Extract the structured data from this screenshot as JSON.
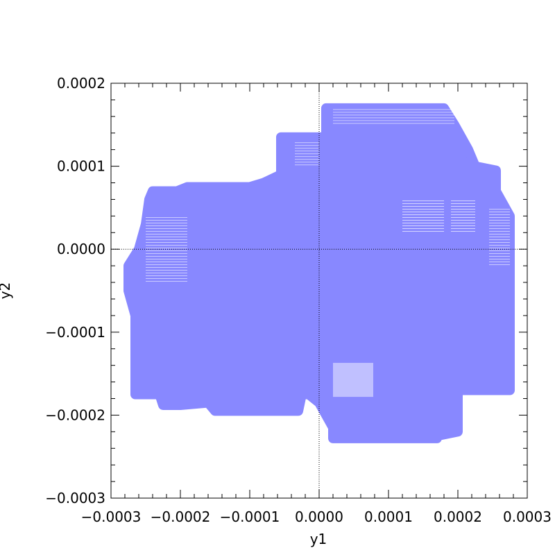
{
  "chart_data": {
    "type": "area",
    "xlabel": "y1",
    "ylabel": "y2",
    "xlim": [
      -0.0003,
      0.0003
    ],
    "ylim": [
      -0.0003,
      0.0002
    ],
    "x_ticks": [
      -0.0003,
      -0.0002,
      -0.0001,
      0.0,
      0.0001,
      0.0002,
      0.0003
    ],
    "x_tick_labels": [
      "−0.0003",
      "−0.0002",
      "−0.0001",
      "0.0000",
      "0.0001",
      "0.0002",
      "0.0003"
    ],
    "y_ticks": [
      -0.0003,
      -0.0002,
      -0.0001,
      0.0,
      0.0001,
      0.0002
    ],
    "y_tick_labels": [
      "−0.0003",
      "−0.0002",
      "−0.0001",
      "0.0000",
      "0.0001",
      "0.0002"
    ],
    "zero_lines": true,
    "fill_color": "#8888ff",
    "highlight_color": "#c0c0ff",
    "region_outline": [
      [
        -0.000265,
        -0.00017
      ],
      [
        -0.000265,
        -8e-05
      ],
      [
        -0.000275,
        -5e-05
      ],
      [
        -0.000275,
        -2e-05
      ],
      [
        -0.00026,
        0.0
      ],
      [
        -0.00025,
        3e-05
      ],
      [
        -0.000245,
        6e-05
      ],
      [
        -0.00024,
        7e-05
      ],
      [
        -0.000205,
        7e-05
      ],
      [
        -0.00019,
        7.5e-05
      ],
      [
        -0.0001,
        7.5e-05
      ],
      [
        -8e-05,
        8e-05
      ],
      [
        -5.5e-05,
        9e-05
      ],
      [
        -5.5e-05,
        0.000135
      ],
      [
        -4e-05,
        0.000135
      ],
      [
        -2.5e-05,
        0.000135
      ],
      [
        1e-05,
        0.000135
      ],
      [
        1e-05,
        0.00017
      ],
      [
        0.00018,
        0.00017
      ],
      [
        0.000195,
        0.00015
      ],
      [
        0.000215,
        0.00012
      ],
      [
        0.000225,
        0.0001
      ],
      [
        0.000255,
        9.5e-05
      ],
      [
        0.000255,
        7e-05
      ],
      [
        0.000275,
        4e-05
      ],
      [
        0.000275,
        -7e-05
      ],
      [
        0.000275,
        -0.00017
      ],
      [
        0.0002,
        -0.00017
      ],
      [
        0.0002,
        -0.00022
      ],
      [
        0.00017,
        -0.000225
      ],
      [
        0.00017,
        -0.000228
      ],
      [
        6e-05,
        -0.000228
      ],
      [
        2e-05,
        -0.000228
      ],
      [
        2e-05,
        -0.000215
      ],
      [
        0.0,
        -0.000185
      ],
      [
        -1.5e-05,
        -0.000175
      ],
      [
        -2.5e-05,
        -0.000175
      ],
      [
        -3e-05,
        -0.000195
      ],
      [
        -0.00015,
        -0.000195
      ],
      [
        -0.00016,
        -0.000185
      ],
      [
        -0.0002,
        -0.000188
      ],
      [
        -0.000225,
        -0.000188
      ],
      [
        -0.00023,
        -0.000175
      ],
      [
        -0.000265,
        -0.000175
      ]
    ],
    "highlight_box": {
      "x": [
        2e-05,
        7.8e-05
      ],
      "y": [
        -0.000178,
        -0.000137
      ]
    },
    "hatch_regions": [
      {
        "x": [
          -0.00025,
          -0.00019
        ],
        "y": [
          -4e-05,
          4e-05
        ]
      },
      {
        "x": [
          -3.5e-05,
          0.0
        ],
        "y": [
          0.0001,
          0.00013
        ]
      },
      {
        "x": [
          2e-05,
          0.000195
        ],
        "y": [
          0.00015,
          0.00017
        ]
      },
      {
        "x": [
          0.00012,
          0.00018
        ],
        "y": [
          2e-05,
          6e-05
        ]
      },
      {
        "x": [
          0.00019,
          0.000225
        ],
        "y": [
          2e-05,
          6e-05
        ]
      },
      {
        "x": [
          0.000245,
          0.000275
        ],
        "y": [
          -2e-05,
          5e-05
        ]
      }
    ]
  }
}
